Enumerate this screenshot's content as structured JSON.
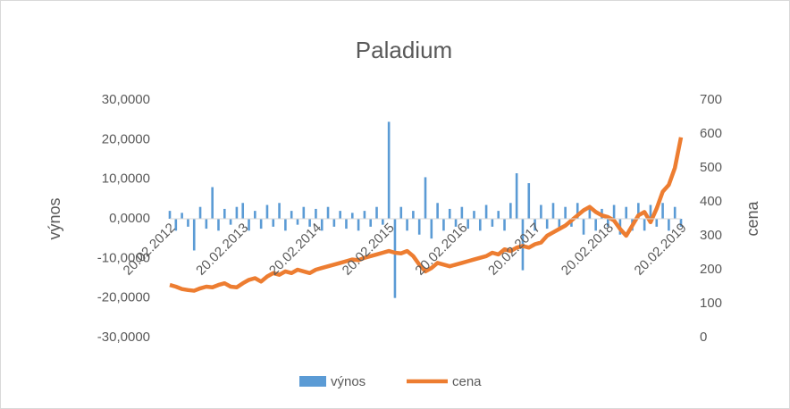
{
  "chart_data": {
    "type": "bar_line",
    "title": "Paladium",
    "y_label": "výnos",
    "y2_label": "cena",
    "categories": [
      "20.02.2012",
      null,
      null,
      null,
      null,
      null,
      null,
      null,
      null,
      null,
      null,
      null,
      "20.02.2013",
      null,
      null,
      null,
      null,
      null,
      null,
      null,
      null,
      null,
      null,
      null,
      "20.02.2014",
      null,
      null,
      null,
      null,
      null,
      null,
      null,
      null,
      null,
      null,
      null,
      "20.02.2015",
      null,
      null,
      null,
      null,
      null,
      null,
      null,
      null,
      null,
      null,
      null,
      "20.02.2016",
      null,
      null,
      null,
      null,
      null,
      null,
      null,
      null,
      null,
      null,
      null,
      "20.02.2017",
      null,
      null,
      null,
      null,
      null,
      null,
      null,
      null,
      null,
      null,
      null,
      "20.02.2018",
      null,
      null,
      null,
      null,
      null,
      null,
      null,
      null,
      null,
      null,
      null,
      "20.02.2019"
    ],
    "series": [
      {
        "name": "výnos",
        "type": "bar",
        "color": "#5b9bd5",
        "values": [
          2,
          -3,
          1.5,
          -2,
          -8,
          3,
          -2.5,
          8,
          -3,
          2.5,
          -1.5,
          3,
          4,
          -3,
          2,
          -2.5,
          3.5,
          -2,
          4,
          -3,
          2,
          -1.5,
          3,
          -2,
          2.5,
          -3,
          3,
          -2,
          2,
          -2.5,
          1.5,
          -3,
          2,
          -2,
          3,
          -1.5,
          24.5,
          -20,
          3,
          -3,
          2,
          -4,
          10.5,
          -5,
          4,
          -3,
          2.5,
          -2,
          3,
          -2.5,
          2,
          -3,
          3.5,
          -2,
          2,
          -3,
          4,
          11.5,
          -13,
          9,
          -3,
          3.5,
          -2.5,
          4,
          -3,
          3,
          -2,
          4,
          -4,
          3,
          -3,
          2.5,
          -2,
          3.5,
          -4,
          3,
          -3,
          4,
          -3,
          3.5,
          -2,
          4,
          -3,
          3,
          -2
        ]
      },
      {
        "name": "cena",
        "type": "line",
        "axis": "y2",
        "color": "#ed7d31",
        "values": [
          155,
          150,
          143,
          140,
          138,
          145,
          150,
          148,
          155,
          160,
          150,
          148,
          160,
          170,
          175,
          165,
          180,
          190,
          185,
          195,
          190,
          200,
          195,
          190,
          200,
          205,
          210,
          215,
          220,
          225,
          230,
          228,
          235,
          240,
          245,
          250,
          255,
          250,
          248,
          255,
          240,
          215,
          195,
          205,
          220,
          215,
          210,
          215,
          220,
          225,
          230,
          235,
          240,
          250,
          245,
          260,
          255,
          265,
          270,
          265,
          275,
          280,
          300,
          310,
          320,
          330,
          345,
          360,
          375,
          385,
          370,
          360,
          355,
          345,
          320,
          300,
          330,
          360,
          370,
          340,
          380,
          430,
          450,
          500,
          590
        ]
      }
    ],
    "ylim": [
      -30,
      30
    ],
    "yticks": [
      {
        "value": -30,
        "label": "-30,0000"
      },
      {
        "value": -20,
        "label": "-20,0000"
      },
      {
        "value": -10,
        "label": "-10,0000"
      },
      {
        "value": 0,
        "label": "0,0000"
      },
      {
        "value": 10,
        "label": "10,0000"
      },
      {
        "value": 20,
        "label": "20,0000"
      },
      {
        "value": 30,
        "label": "30,0000"
      }
    ],
    "y2lim": [
      0,
      700
    ],
    "y2ticks": [
      0,
      100,
      200,
      300,
      400,
      500,
      600,
      700
    ],
    "legend": "bottom"
  }
}
